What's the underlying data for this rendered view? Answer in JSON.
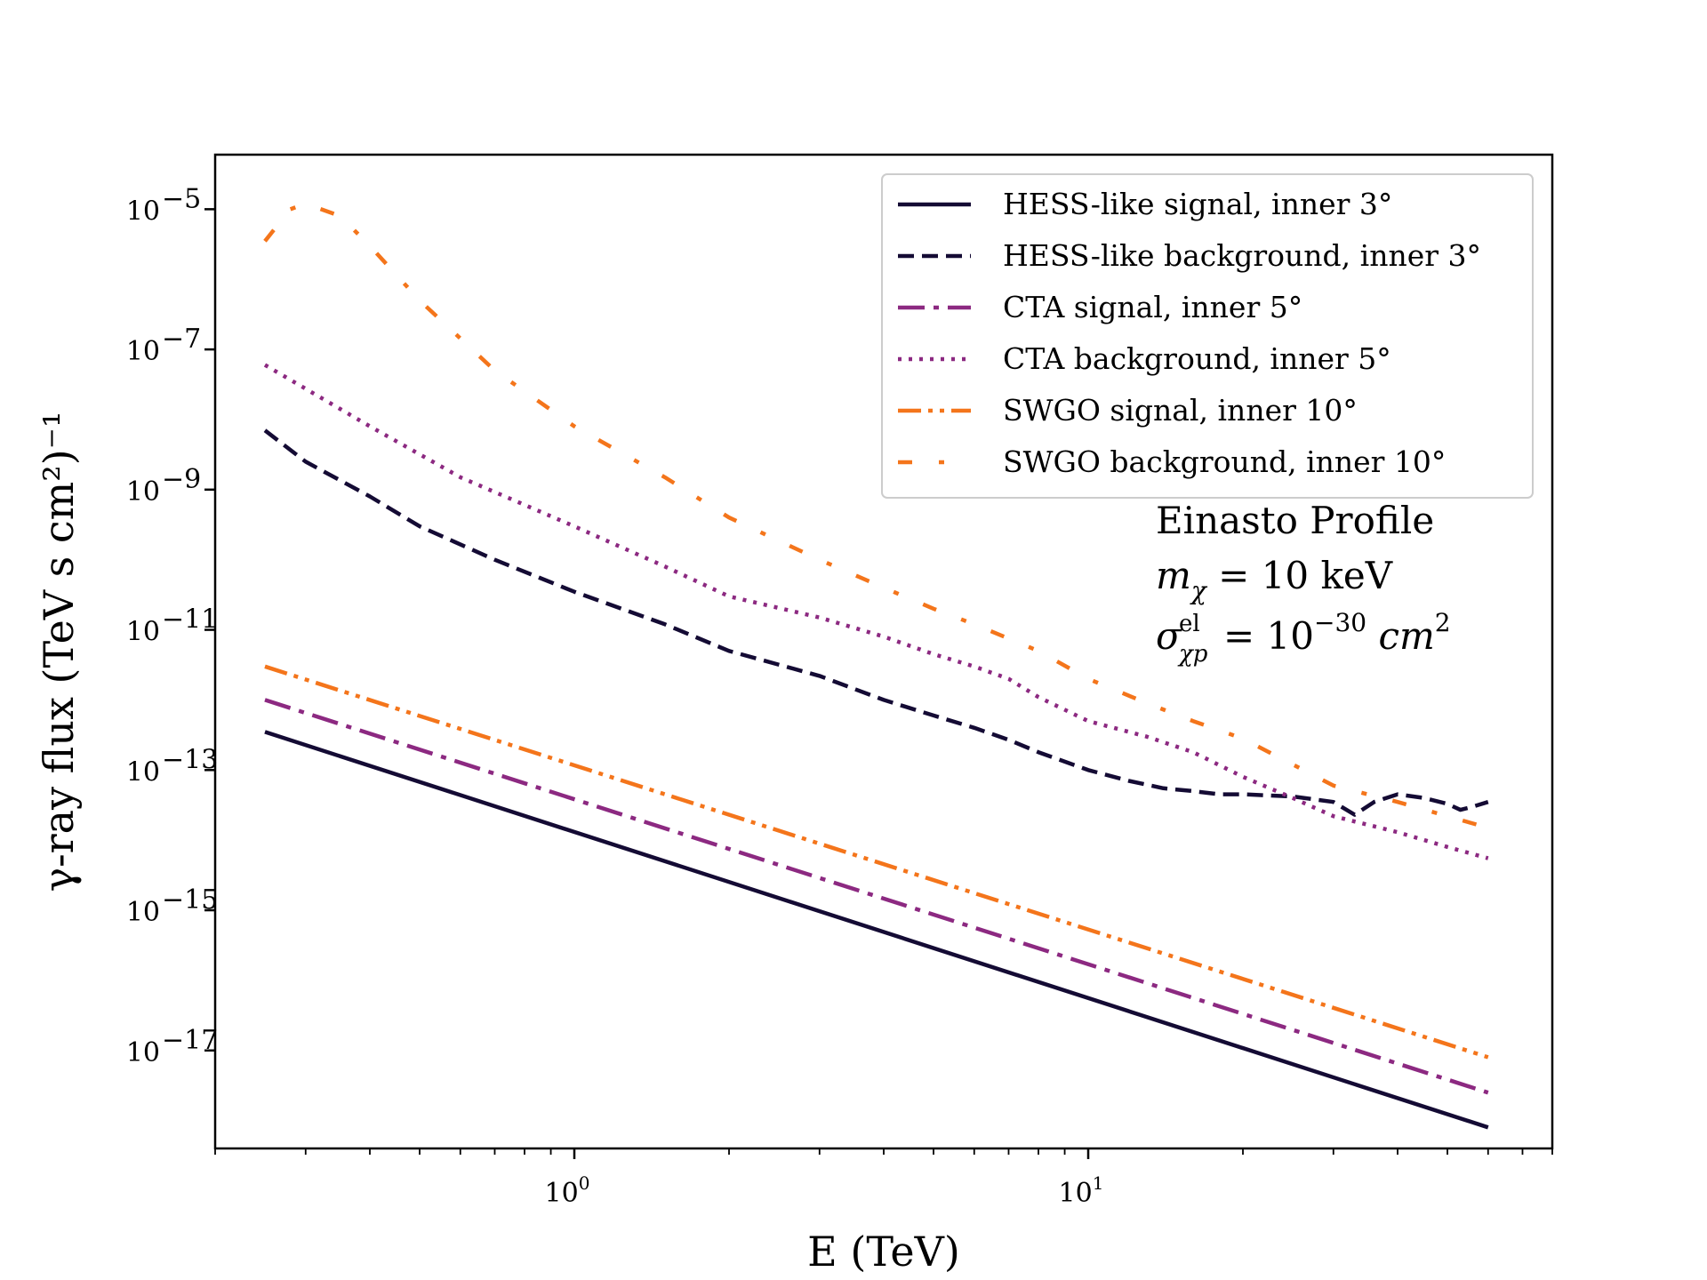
{
  "chart_data": {
    "type": "line",
    "xlabel": "E (TeV)",
    "ylabel": "γ-ray flux (TeV s cm²)⁻¹",
    "x_scale": "log",
    "y_scale": "log",
    "xlim": [
      0.2,
      80
    ],
    "ylim": [
      4e-19,
      6e-05
    ],
    "x_ticks": [
      {
        "value": 1,
        "base": "10",
        "exp": "0"
      },
      {
        "value": 10,
        "base": "10",
        "exp": "1"
      }
    ],
    "y_ticks": [
      {
        "value": 1e-05,
        "base": "10",
        "exp": "−5"
      },
      {
        "value": 1e-07,
        "base": "10",
        "exp": "−7"
      },
      {
        "value": 1e-09,
        "base": "10",
        "exp": "−9"
      },
      {
        "value": 1e-11,
        "base": "10",
        "exp": "−11"
      },
      {
        "value": 1e-13,
        "base": "10",
        "exp": "−13"
      },
      {
        "value": 1e-15,
        "base": "10",
        "exp": "−15"
      },
      {
        "value": 1e-17,
        "base": "10",
        "exp": "−17"
      }
    ],
    "legend_position": "top-right",
    "annotation": {
      "line1": "Einasto Profile",
      "line2_main": "m",
      "line2_sub": "χ",
      "line2_rest": " = 10 keV",
      "line3_main": "σ",
      "line3_sup": "el",
      "line3_sub": "χp",
      "line3_eq": " = 10",
      "line3_exp": "−30",
      "line3_unit": " cm",
      "line3_unit_exp": "2"
    },
    "series": [
      {
        "name": "HESS-like signal, inner 3°",
        "color": "#140b34",
        "style": "solid",
        "x": [
          0.25,
          60
        ],
        "y": [
          3.5e-13,
          8e-19
        ]
      },
      {
        "name": "HESS-like background, inner 3°",
        "color": "#140b34",
        "style": "dashed",
        "x": [
          0.25,
          0.3,
          0.4,
          0.5,
          0.7,
          1.0,
          1.5,
          2.0,
          3.0,
          4.0,
          5.0,
          6.0,
          7.0,
          8.0,
          10.0,
          12.0,
          14.0,
          16.0,
          18.0,
          20.0,
          25.0,
          30.0,
          33.0,
          36.0,
          40.0,
          45.0,
          50.0,
          53.0,
          56.0,
          60.0
        ],
        "y": [
          7e-09,
          2.5e-09,
          8e-10,
          3e-10,
          1e-10,
          3.5e-11,
          1.2e-11,
          5e-12,
          2.2e-12,
          1e-12,
          6e-13,
          4e-13,
          2.7e-13,
          1.8e-13,
          1e-13,
          7e-14,
          5.5e-14,
          5e-14,
          4.5e-14,
          4.5e-14,
          4.2e-14,
          3.5e-14,
          2.3e-14,
          3.5e-14,
          4.5e-14,
          4e-14,
          3.3e-14,
          2.7e-14,
          3e-14,
          3.5e-14
        ]
      },
      {
        "name": "CTA signal, inner 5°",
        "color": "#8c2981",
        "style": "dashdot",
        "x": [
          0.25,
          60
        ],
        "y": [
          1e-12,
          2.5e-18
        ]
      },
      {
        "name": "CTA background, inner 5°",
        "color": "#8c2981",
        "style": "dotted",
        "x": [
          0.25,
          0.4,
          0.6,
          1.0,
          1.5,
          2.0,
          3.0,
          4.0,
          5.0,
          6.0,
          7.0,
          8.0,
          10.0,
          13.0,
          16.0,
          20.0,
          25.0,
          30.0,
          40.0,
          50.0,
          60.0
        ],
        "y": [
          6e-08,
          8e-09,
          1.5e-09,
          3e-10,
          8e-11,
          3e-11,
          1.5e-11,
          8e-12,
          4.5e-12,
          3e-12,
          2e-12,
          1.1e-12,
          5e-13,
          3e-13,
          1.8e-13,
          8e-14,
          4e-14,
          2.2e-14,
          1.3e-14,
          8e-15,
          5.5e-15
        ]
      },
      {
        "name": "SWGO signal, inner 10°",
        "color": "#f4751b",
        "style": "dashdotdot",
        "x": [
          0.25,
          60
        ],
        "y": [
          3e-12,
          8e-18
        ]
      },
      {
        "name": "SWGO background, inner 10°",
        "color": "#f4751b",
        "style": "loosedashdot",
        "x": [
          0.25,
          0.28,
          0.3,
          0.35,
          0.4,
          0.5,
          0.7,
          1.0,
          1.5,
          2.0,
          3.0,
          4.0,
          5.0,
          6.0,
          8.0,
          10.0,
          13.0,
          16.0,
          20.0,
          25.0,
          30.0,
          40.0,
          50.0,
          60.0
        ],
        "y": [
          3.5e-06,
          1e-05,
          1.2e-05,
          8e-06,
          3e-06,
          5e-07,
          5e-08,
          8e-09,
          1.5e-09,
          4e-10,
          1e-10,
          4e-11,
          2e-11,
          1.2e-11,
          5e-12,
          2e-12,
          9e-13,
          5e-13,
          2.8e-13,
          1.2e-13,
          6e-14,
          3.5e-14,
          2.2e-14,
          1.5e-14
        ]
      }
    ]
  }
}
